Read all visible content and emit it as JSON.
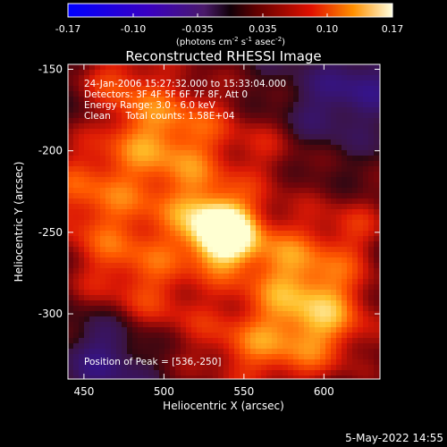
{
  "colorbar": {
    "ticks": [
      "-0.17",
      "-0.10",
      "-0.035",
      "0.035",
      "0.10",
      "0.17"
    ],
    "unit_label": "(photons cm",
    "unit_sup1": "-2",
    "unit_mid": " s",
    "unit_sup2": "-1",
    "unit_mid2": " asec",
    "unit_sup3": "-2",
    "unit_end": ")",
    "range": [
      -0.17,
      0.17
    ]
  },
  "chart_data": {
    "type": "heatmap",
    "title": "Reconstructed RHESSI Image",
    "xlabel": "Heliocentric X (arcsec)",
    "ylabel": "Heliocentric Y (arcsec)",
    "xlim": [
      440,
      635
    ],
    "ylim": [
      -340,
      -147
    ],
    "x_ticks": [
      "450",
      "500",
      "550",
      "600"
    ],
    "y_ticks": [
      "-150",
      "-200",
      "-250",
      "-300"
    ],
    "x_tick_values": [
      450,
      500,
      550,
      600
    ],
    "y_tick_values": [
      -150,
      -200,
      -250,
      -300
    ],
    "annotation_lines": [
      "24-Jan-2006 15:27:32.000 to 15:33:04.000",
      "Detectors: 3F 4F 5F 6F 7F 8F, Att 0",
      "Energy Range: 3.0 - 6.0 keV",
      "Clean     Total counts: 1.58E+04"
    ],
    "peak_label": "Position of Peak = [536,-250]",
    "peak": [
      536,
      -250
    ],
    "colormap": "hot-negative-blue"
  },
  "footer": {
    "date": "5-May-2022 14:55"
  }
}
